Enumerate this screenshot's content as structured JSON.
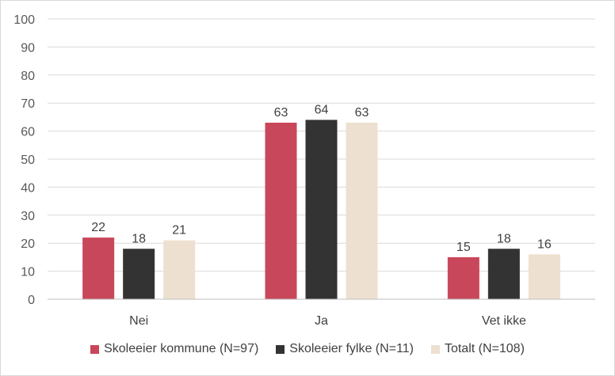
{
  "chart_data": {
    "type": "bar",
    "categories": [
      "Nei",
      "Ja",
      "Vet ikke"
    ],
    "series": [
      {
        "name": "Skoleeier kommune (N=97)",
        "values": [
          22,
          63,
          15
        ],
        "color": "#c8475a"
      },
      {
        "name": "Skoleeier fylke (N=11)",
        "values": [
          18,
          64,
          18
        ],
        "color": "#333333"
      },
      {
        "name": "Totalt (N=108)",
        "values": [
          21,
          63,
          16
        ],
        "color": "#ede0d0"
      }
    ],
    "ylim": [
      0,
      100
    ],
    "yticks": [
      0,
      10,
      20,
      30,
      40,
      50,
      60,
      70,
      80,
      90,
      100
    ],
    "grid": true,
    "legend_position": "bottom",
    "data_labels": true
  }
}
